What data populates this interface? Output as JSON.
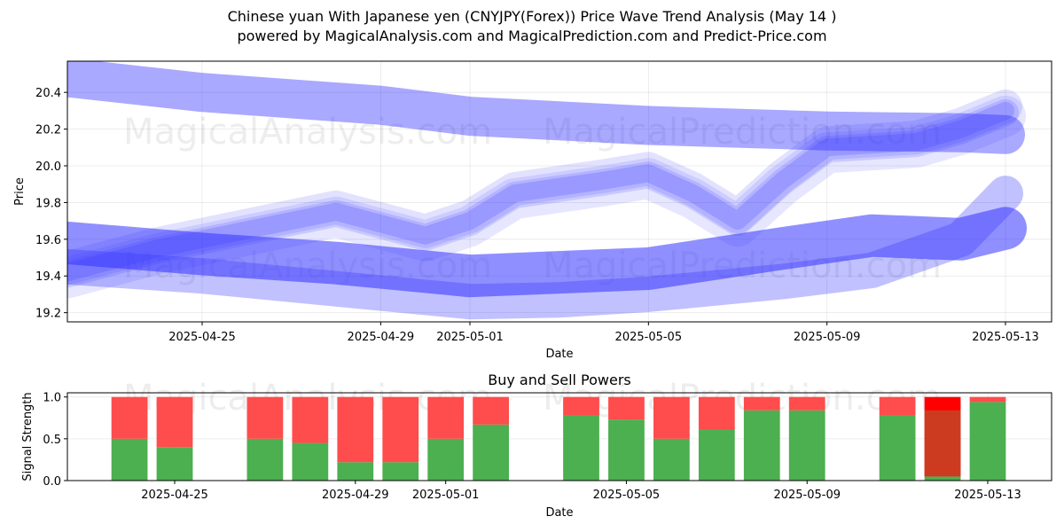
{
  "title_line1": "Chinese yuan With Japanese yen (CNYJPY(Forex)) Price Wave Trend Analysis (May 14 )",
  "title_line2": "powered by MagicalAnalysis.com and MagicalPrediction.com and Predict-Price.com",
  "watermarks": [
    "MagicalAnalysis.com",
    "MagicalPrediction.com"
  ],
  "colors": {
    "wave": "#3333ff",
    "buy": "#4caf50",
    "sell": "#ff4c4c",
    "strong_sell": "#ff0000",
    "dark_overlap": "#cc3b1f"
  },
  "chart_data": [
    {
      "type": "line",
      "title": "",
      "xlabel": "Date",
      "ylabel": "Price",
      "xlim": [
        "2025-04-21",
        "2025-05-14"
      ],
      "ylim": [
        19.15,
        20.57
      ],
      "x_ticks": [
        "2025-04-25",
        "2025-04-29",
        "2025-05-01",
        "2025-05-05",
        "2025-05-09",
        "2025-05-13"
      ],
      "y_ticks": [
        19.2,
        19.4,
        19.6,
        19.8,
        20.0,
        20.2,
        20.4
      ],
      "grid": true,
      "series": [
        {
          "name": "upper-band",
          "x": [
            "2025-04-22",
            "2025-04-25",
            "2025-04-29",
            "2025-05-01",
            "2025-05-05",
            "2025-05-09",
            "2025-05-12",
            "2025-05-13"
          ],
          "values": [
            20.48,
            20.4,
            20.33,
            20.27,
            20.22,
            20.19,
            20.18,
            20.17
          ]
        },
        {
          "name": "middle-wave",
          "x": [
            "2025-04-22",
            "2025-04-24",
            "2025-04-27",
            "2025-04-28",
            "2025-04-30",
            "2025-05-01",
            "2025-05-02",
            "2025-05-04",
            "2025-05-05",
            "2025-05-06",
            "2025-05-07",
            "2025-05-08",
            "2025-05-09",
            "2025-05-11",
            "2025-05-12",
            "2025-05-13"
          ],
          "values": [
            19.42,
            19.55,
            19.7,
            19.75,
            19.62,
            19.7,
            19.85,
            19.92,
            19.96,
            19.85,
            19.7,
            19.92,
            20.1,
            20.13,
            20.2,
            20.3
          ]
        },
        {
          "name": "lower-band-dark",
          "x": [
            "2025-04-22",
            "2025-04-25",
            "2025-04-28",
            "2025-05-01",
            "2025-05-03",
            "2025-05-05",
            "2025-05-08",
            "2025-05-10",
            "2025-05-12",
            "2025-05-13"
          ],
          "values": [
            19.58,
            19.52,
            19.47,
            19.4,
            19.42,
            19.44,
            19.55,
            19.62,
            19.6,
            19.66
          ]
        },
        {
          "name": "lower-band-light",
          "x": [
            "2025-04-22",
            "2025-04-25",
            "2025-04-28",
            "2025-05-01",
            "2025-05-03",
            "2025-05-05",
            "2025-05-08",
            "2025-05-10",
            "2025-05-12",
            "2025-05-13"
          ],
          "values": [
            19.45,
            19.4,
            19.33,
            19.26,
            19.27,
            19.3,
            19.37,
            19.43,
            19.6,
            19.85
          ]
        }
      ]
    },
    {
      "type": "bar",
      "title": "Buy and Sell Powers",
      "xlabel": "Date",
      "ylabel": "Signal Strength",
      "ylim": [
        0,
        1.05
      ],
      "x_ticks": [
        "2025-04-25",
        "2025-04-29",
        "2025-05-01",
        "2025-05-05",
        "2025-05-09",
        "2025-05-13"
      ],
      "y_ticks": [
        0.0,
        0.5,
        1.0
      ],
      "grid": true,
      "categories": [
        "2025-04-24",
        "2025-04-25",
        "2025-04-27",
        "2025-04-28",
        "2025-04-29",
        "2025-04-30",
        "2025-05-01",
        "2025-05-02",
        "2025-05-04",
        "2025-05-05",
        "2025-05-06",
        "2025-05-07",
        "2025-05-08",
        "2025-05-09",
        "2025-05-11",
        "2025-05-12",
        "2025-05-13"
      ],
      "series": [
        {
          "name": "Buy",
          "values": [
            0.5,
            0.4,
            0.5,
            0.45,
            0.22,
            0.22,
            0.5,
            0.67,
            0.78,
            0.73,
            0.5,
            0.61,
            0.84,
            0.84,
            0.78,
            0.05,
            0.94
          ]
        },
        {
          "name": "Sell",
          "values": [
            0.5,
            0.6,
            0.5,
            0.55,
            0.78,
            0.78,
            0.5,
            0.33,
            0.22,
            0.27,
            0.5,
            0.39,
            0.16,
            0.16,
            0.22,
            0.95,
            0.06
          ]
        }
      ]
    }
  ]
}
